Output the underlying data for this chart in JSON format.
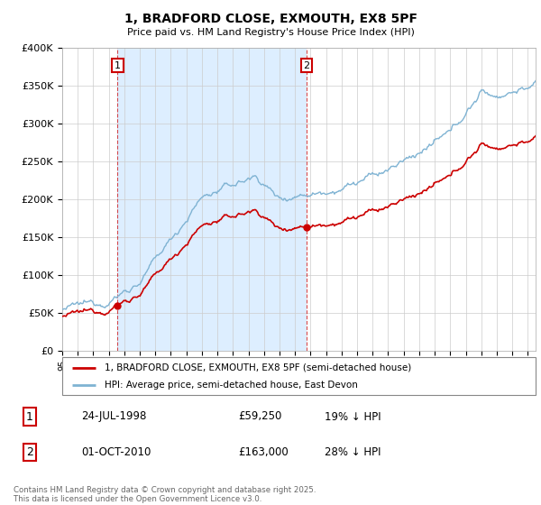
{
  "title": "1, BRADFORD CLOSE, EXMOUTH, EX8 5PF",
  "subtitle": "Price paid vs. HM Land Registry's House Price Index (HPI)",
  "legend_line1": "1, BRADFORD CLOSE, EXMOUTH, EX8 5PF (semi-detached house)",
  "legend_line2": "HPI: Average price, semi-detached house, East Devon",
  "annotation1_label": "1",
  "annotation1_date": "24-JUL-1998",
  "annotation1_price": "£59,250",
  "annotation1_hpi": "19% ↓ HPI",
  "annotation2_label": "2",
  "annotation2_date": "01-OCT-2010",
  "annotation2_price": "£163,000",
  "annotation2_hpi": "28% ↓ HPI",
  "footer": "Contains HM Land Registry data © Crown copyright and database right 2025.\nThis data is licensed under the Open Government Licence v3.0.",
  "property_color": "#cc0000",
  "hpi_color": "#7fb3d3",
  "shade_color": "#ddeeff",
  "ylim_min": 0,
  "ylim_max": 400000,
  "sale1_year": 1998.56,
  "sale1_price": 59250,
  "sale2_year": 2010.75,
  "sale2_price": 163000
}
